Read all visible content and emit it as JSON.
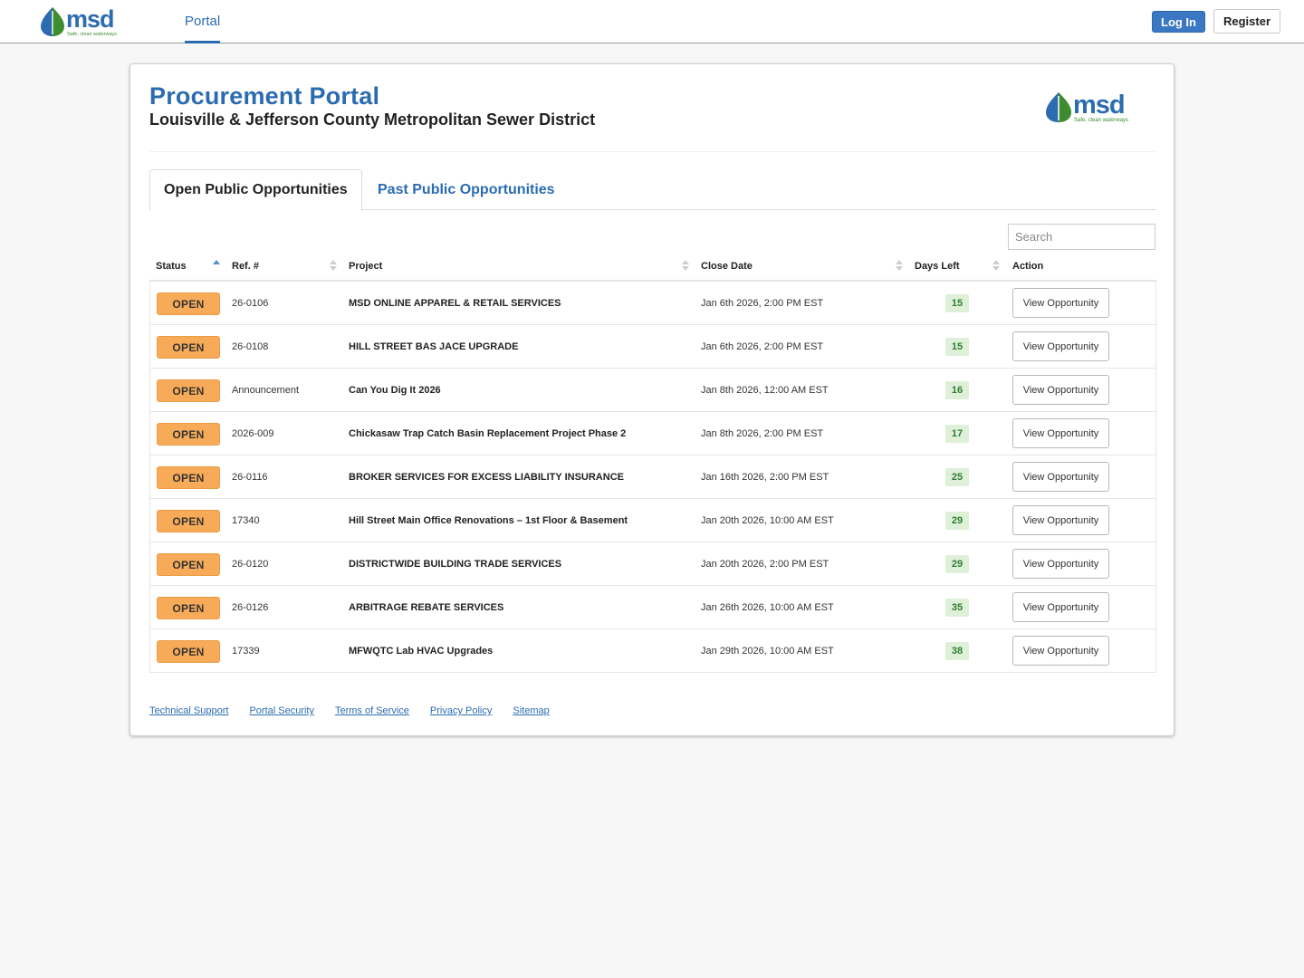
{
  "nav": {
    "portal": "Portal",
    "login": "Log In",
    "register": "Register"
  },
  "logo": {
    "wordmark": "msd",
    "tagline": "Safe, clean waterways",
    "leaf_color": "#3d8c2f",
    "drop_color": "#2b6cb0",
    "text_color": "#2b6cb0"
  },
  "header": {
    "title": "Procurement Portal",
    "subtitle": "Louisville & Jefferson County Metropolitan Sewer District"
  },
  "tabs": [
    {
      "label": "Open Public Opportunities",
      "active": true
    },
    {
      "label": "Past Public Opportunities",
      "active": false
    }
  ],
  "search": {
    "placeholder": "Search"
  },
  "columns": [
    "Status",
    "Ref. #",
    "Project",
    "Close Date",
    "Days Left",
    "Action"
  ],
  "rows": [
    {
      "status": "OPEN",
      "ref": "26-0106",
      "project": "MSD ONLINE APPAREL & RETAIL SERVICES",
      "close": "Jan 6th 2026, 2:00 PM EST",
      "days": "15",
      "action": "View Opportunity"
    },
    {
      "status": "OPEN",
      "ref": "26-0108",
      "project": "HILL STREET BAS JACE UPGRADE",
      "close": "Jan 6th 2026, 2:00 PM EST",
      "days": "15",
      "action": "View Opportunity"
    },
    {
      "status": "OPEN",
      "ref": "Announcement",
      "project": "Can You Dig It 2026",
      "close": "Jan 8th 2026, 12:00 AM EST",
      "days": "16",
      "action": "View Opportunity"
    },
    {
      "status": "OPEN",
      "ref": "2026-009",
      "project": "Chickasaw Trap Catch Basin Replacement Project Phase 2",
      "close": "Jan 8th 2026, 2:00 PM EST",
      "days": "17",
      "action": "View Opportunity"
    },
    {
      "status": "OPEN",
      "ref": "26-0116",
      "project": "BROKER SERVICES FOR EXCESS LIABILITY INSURANCE",
      "close": "Jan 16th 2026, 2:00 PM EST",
      "days": "25",
      "action": "View Opportunity"
    },
    {
      "status": "OPEN",
      "ref": "17340",
      "project": "Hill Street Main Office Renovations – 1st Floor & Basement",
      "close": "Jan 20th 2026, 10:00 AM EST",
      "days": "29",
      "action": "View Opportunity"
    },
    {
      "status": "OPEN",
      "ref": "26-0120",
      "project": "DISTRICTWIDE BUILDING TRADE SERVICES",
      "close": "Jan 20th 2026, 2:00 PM EST",
      "days": "29",
      "action": "View Opportunity"
    },
    {
      "status": "OPEN",
      "ref": "26-0126",
      "project": "ARBITRAGE REBATE SERVICES",
      "close": "Jan 26th 2026, 10:00 AM EST",
      "days": "35",
      "action": "View Opportunity"
    },
    {
      "status": "OPEN",
      "ref": "17339",
      "project": "MFWQTC Lab HVAC Upgrades",
      "close": "Jan 29th 2026, 10:00 AM EST",
      "days": "38",
      "action": "View Opportunity"
    }
  ],
  "footer": [
    "Technical Support",
    "Portal Security",
    "Terms of Service",
    "Privacy Policy",
    "Sitemap"
  ]
}
